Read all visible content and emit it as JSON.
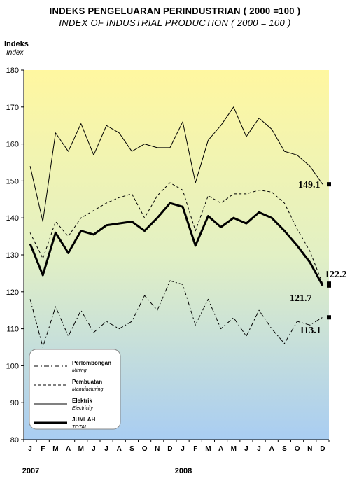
{
  "title": "INDEKS PENGELUARAN PERINDUSTRIAN ( 2000 =100 )",
  "subtitle": "INDEX OF INDUSTRIAL PRODUCTION ( 2000 = 100 )",
  "ylabel": "Indeks",
  "ylabel_en": "Index",
  "colors": {
    "bg_top": "#fff7a0",
    "bg_mid": "#e2f0c4",
    "bg_bottom": "#a9cdf2"
  },
  "chart_data": {
    "type": "line",
    "categories": [
      "J",
      "F",
      "M",
      "A",
      "M",
      "J",
      "J",
      "A",
      "S",
      "O",
      "N",
      "D",
      "J",
      "F",
      "M",
      "A",
      "M",
      "J",
      "J",
      "A",
      "S",
      "O",
      "N",
      "D"
    ],
    "year_labels": [
      {
        "label": "2007",
        "index": 0
      },
      {
        "label": "2008",
        "index": 12
      }
    ],
    "ylim": [
      80,
      180
    ],
    "yticks": [
      80,
      90,
      100,
      110,
      120,
      130,
      140,
      150,
      160,
      170,
      180
    ],
    "grid": false,
    "legend_position": "bottom-left",
    "series": [
      {
        "name": "Perlombongan",
        "name_en": "Mining",
        "style": "dashdot",
        "width": 1,
        "values": [
          118,
          105,
          116,
          108,
          115,
          109,
          112,
          110,
          112,
          119,
          115,
          123,
          122,
          111,
          118,
          110,
          113,
          108,
          115,
          110,
          106,
          112,
          111,
          113.1
        ]
      },
      {
        "name": "Pembuatan",
        "name_en": "Manufacturing",
        "style": "dashed",
        "width": 1,
        "values": [
          136,
          129,
          139,
          135,
          140,
          142,
          144,
          145.5,
          146.5,
          140,
          146,
          149.5,
          147.5,
          136.5,
          146,
          144,
          146.5,
          146.5,
          147.5,
          147,
          144,
          137,
          131,
          122.2
        ]
      },
      {
        "name": "Elektrik",
        "name_en": "Electricity",
        "style": "solid",
        "width": 1,
        "values": [
          154,
          139,
          163,
          158,
          165.5,
          157,
          165,
          163,
          158,
          160,
          159,
          159,
          166,
          149.5,
          161,
          165,
          170,
          162,
          167,
          164,
          158,
          157,
          154,
          149.1
        ]
      },
      {
        "name": "JUMLAH",
        "name_en": "TOTAL",
        "style": "solid",
        "width": 3,
        "values": [
          133,
          124.5,
          136,
          130.5,
          136.5,
          135.5,
          138,
          138.5,
          139,
          136.5,
          140,
          144,
          143,
          132.5,
          140.5,
          137.5,
          140,
          138.5,
          141.5,
          140,
          136.5,
          132.5,
          128,
          121.7
        ]
      }
    ],
    "annotations": [
      {
        "text": "149.1",
        "series": "Elektrik"
      },
      {
        "text": "122.2",
        "series": "Pembuatan"
      },
      {
        "text": "121.7",
        "series": "JUMLAH"
      },
      {
        "text": "113.1",
        "series": "Perlombongan"
      }
    ]
  }
}
